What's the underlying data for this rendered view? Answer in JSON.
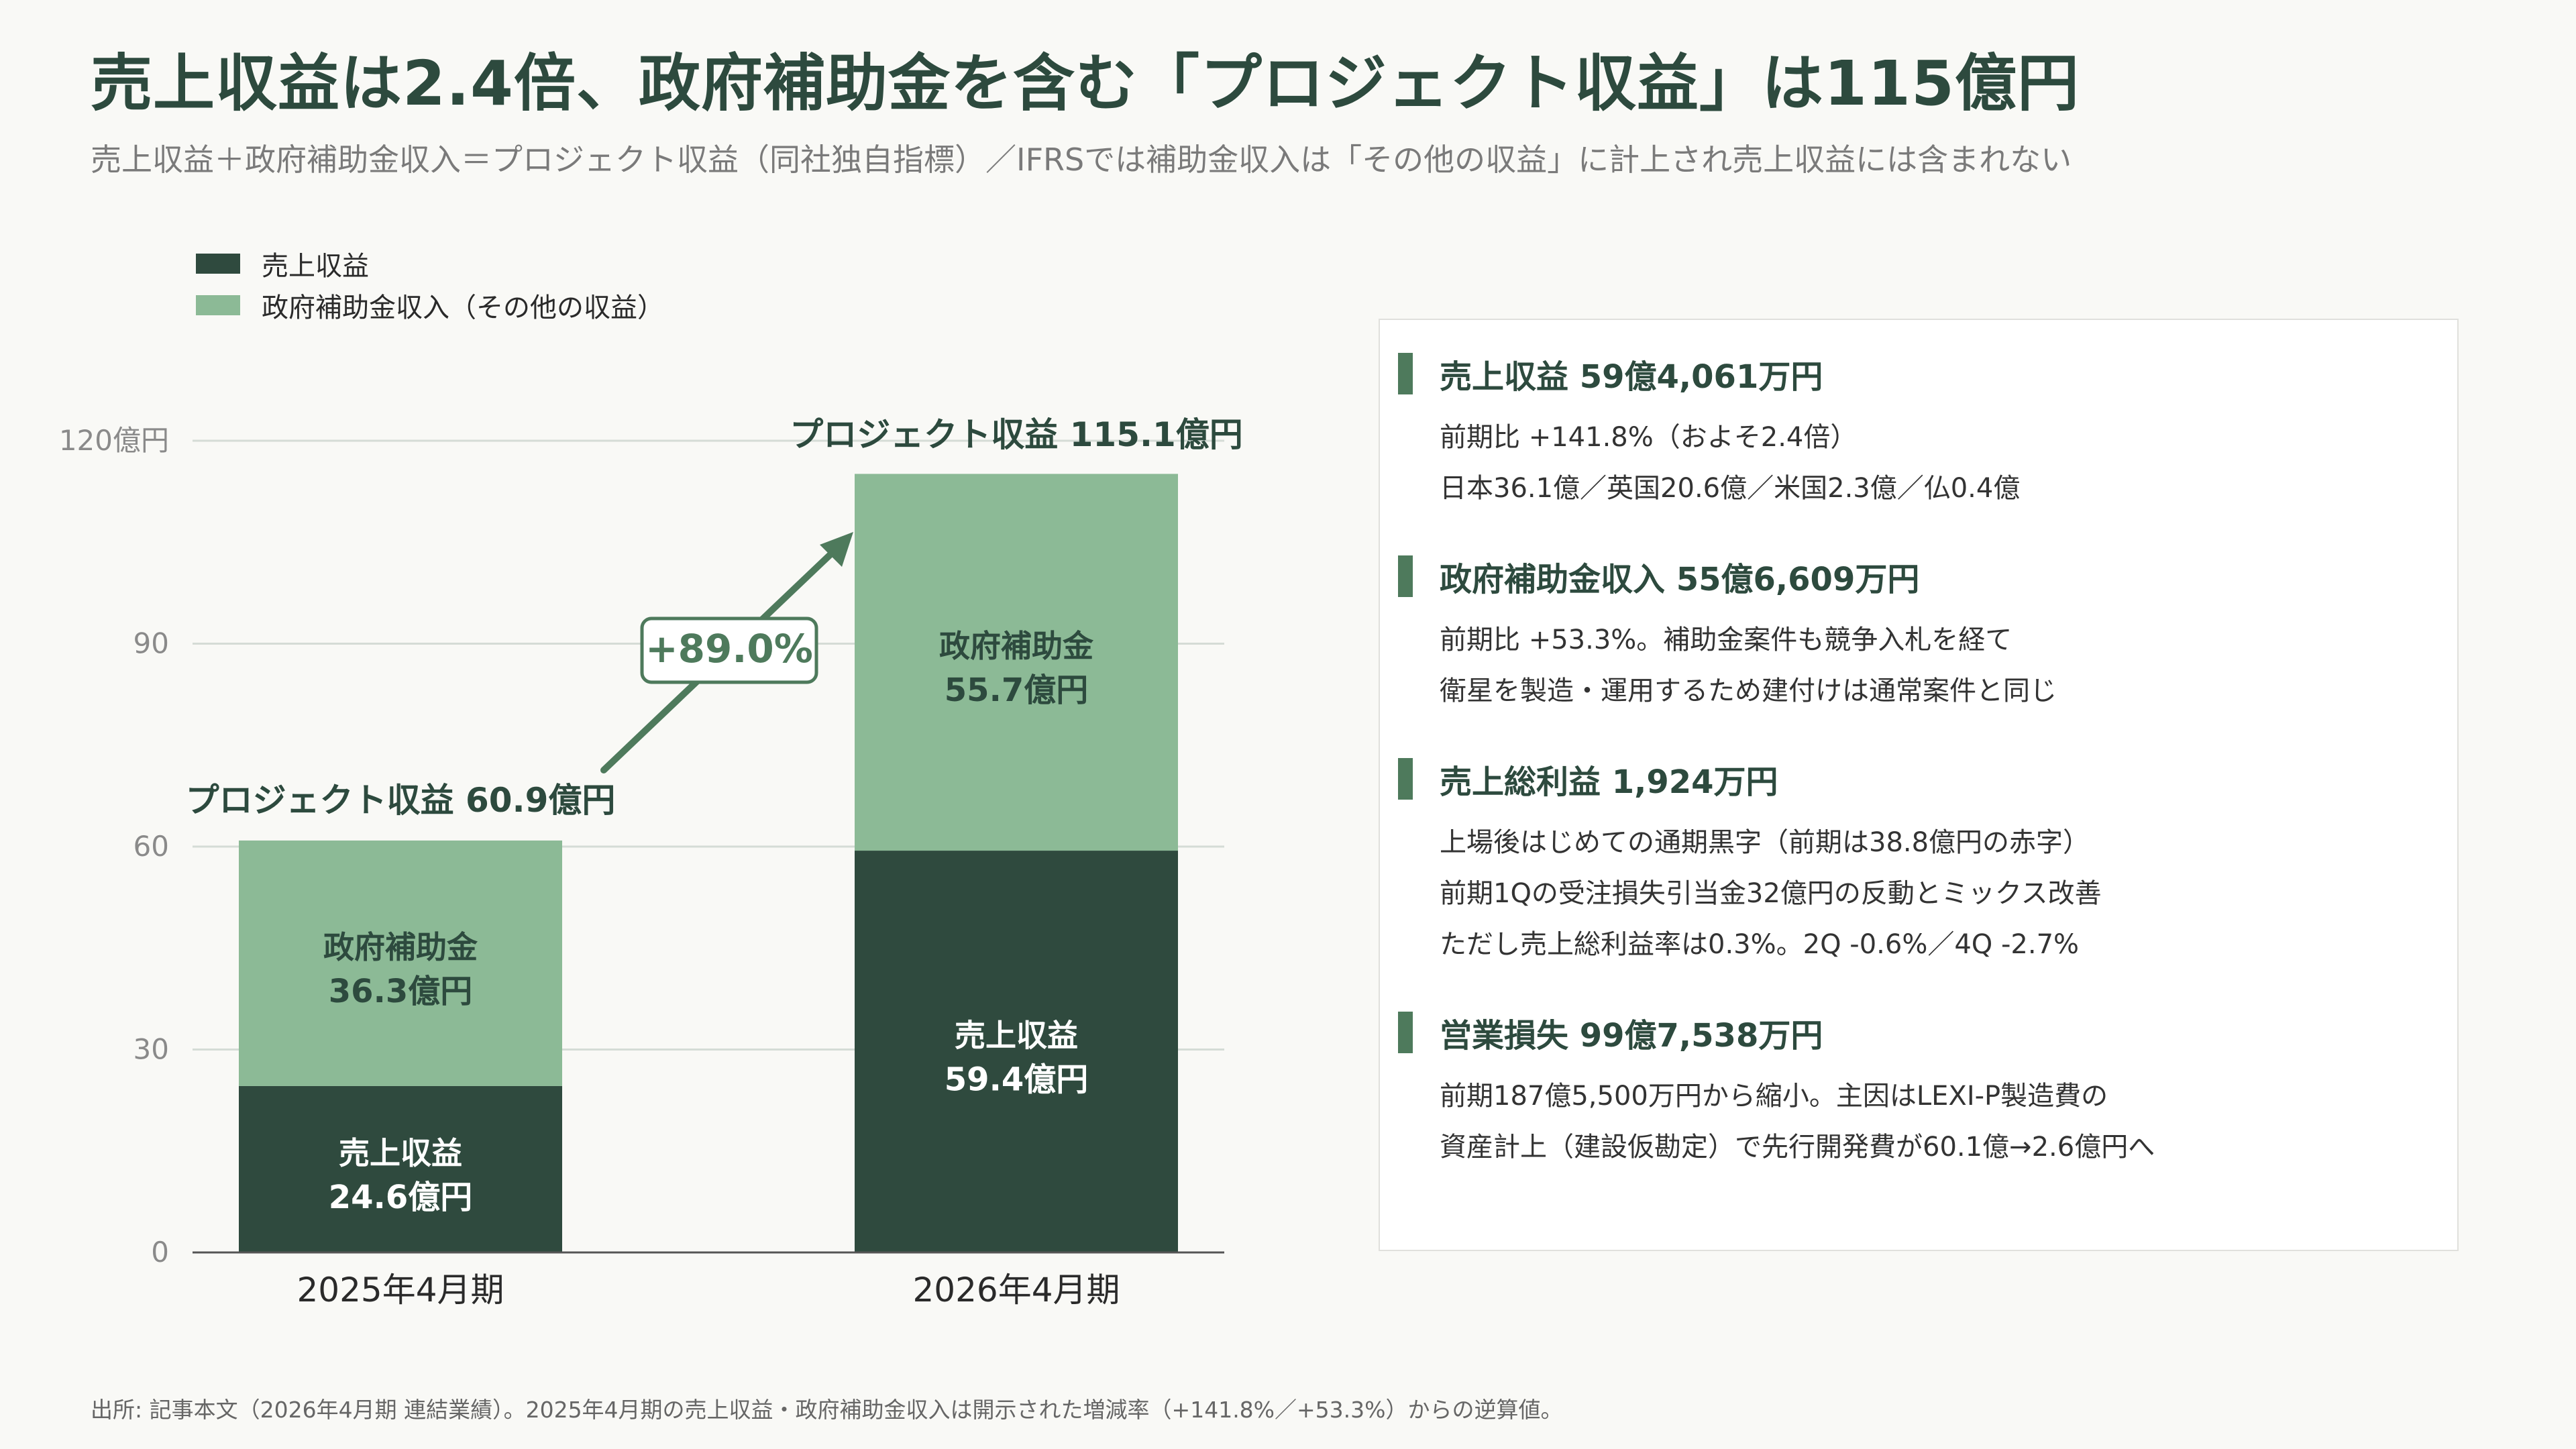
{
  "title": "売上収益は2.4倍、政府補助金を含む「プロジェクト収益」は115億円",
  "subtitle": "売上収益＋政府補助金収入＝プロジェクト収益（同社独自指標）／IFRSでは補助金収入は「その他の収益」に計上され売上収益には含まれない",
  "legend": [
    {
      "label": "売上収益",
      "color": "#2f4a3e"
    },
    {
      "label": "政府補助金収入（その他の収益）",
      "color": "#8cba96"
    }
  ],
  "chart_data": {
    "type": "bar",
    "stacked": true,
    "categories": [
      "2025年4月期",
      "2026年4月期"
    ],
    "series": [
      {
        "name": "売上収益",
        "values": [
          24.6,
          59.4
        ],
        "color": "#2f4a3e",
        "labels": [
          "売上収益|24.6億円",
          "売上収益|59.4億円"
        ]
      },
      {
        "name": "政府補助金収入（その他の収益）",
        "values": [
          36.3,
          55.7
        ],
        "color": "#8cba96",
        "labels": [
          "政府補助金|36.3億円",
          "政府補助金|55.7億円"
        ]
      }
    ],
    "totals": [
      60.9,
      115.1
    ],
    "total_labels": [
      "プロジェクト収益 60.9億円",
      "プロジェクト収益 115.1億円"
    ],
    "growth_label": "+89.0%",
    "ylim": [
      0,
      120
    ],
    "yticks": [
      0,
      30,
      60,
      90,
      120
    ],
    "ytick_labels": [
      "0",
      "30",
      "60",
      "90",
      "120億円"
    ],
    "grid": true
  },
  "panel": {
    "sections": [
      {
        "title": "売上収益 59億4,061万円",
        "lines": [
          "前期比 +141.8%（およそ2.4倍）",
          "日本36.1億／英国20.6億／米国2.3億／仏0.4億"
        ]
      },
      {
        "title": "政府補助金収入 55億6,609万円",
        "lines": [
          "前期比 +53.3%。補助金案件も競争入札を経て",
          "衛星を製造・運用するため建付けは通常案件と同じ"
        ]
      },
      {
        "title": "売上総利益 1,924万円",
        "lines": [
          "上場後はじめての通期黒字（前期は38.8億円の赤字）",
          "前期1Qの受注損失引当金32億円の反動とミックス改善",
          "ただし売上総利益率は0.3%。2Q -0.6%／4Q -2.7%"
        ]
      },
      {
        "title": "営業損失 99億7,538万円",
        "lines": [
          "前期187億5,500万円から縮小。主因はLEXI-P製造費の",
          "資産計上（建設仮勘定）で先行開発費が60.1億→2.6億円へ"
        ]
      }
    ]
  },
  "footnote": "出所: 記事本文（2026年4月期 連結業績）。2025年4月期の売上収益・政府補助金収入は開示された増減率（+141.8%／+53.3%）からの逆算値。"
}
